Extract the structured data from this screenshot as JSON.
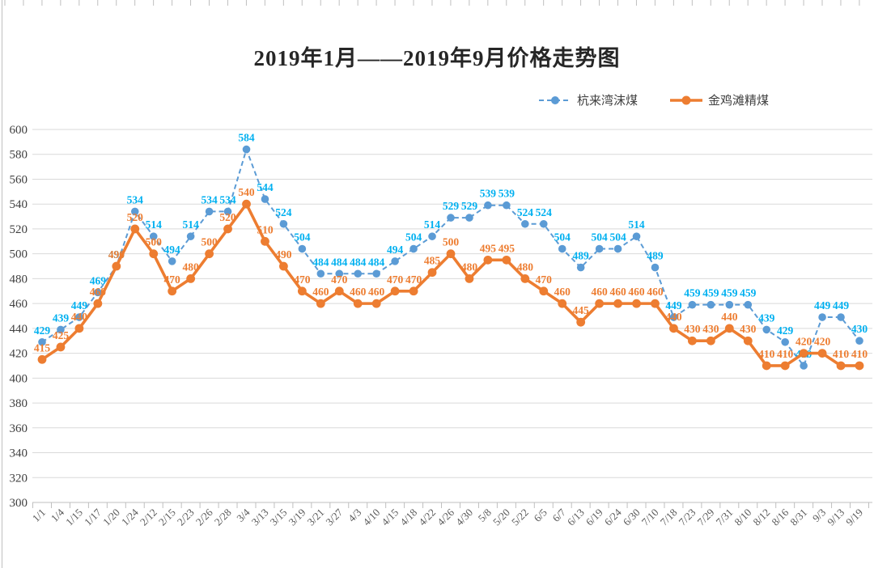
{
  "title": "2019年1月——2019年9月价格走势图",
  "legend": [
    {
      "label": "杭来湾沫煤"
    },
    {
      "label": "金鸡滩精煤"
    }
  ],
  "colors": {
    "series1_line": "#5B9BD5",
    "series1_label": "#00B0F0",
    "series2_line": "#ED7D31",
    "series2_label": "#ED7D31",
    "gridline": "#D9D9D9",
    "axis_line": "#BFBFBF",
    "axis_text": "#404040"
  },
  "chart_data": {
    "type": "line",
    "title": "2019年1月——2019年9月价格走势图",
    "xlabel": "",
    "ylabel": "",
    "grid": true,
    "legend_position": "top-right",
    "ylim": [
      300,
      600
    ],
    "y_ticks": [
      600,
      580,
      560,
      540,
      520,
      500,
      480,
      460,
      440,
      420,
      400,
      380,
      360,
      340,
      320,
      300
    ],
    "categories": [
      "1/1",
      "1/4",
      "1/15",
      "1/17",
      "1/20",
      "1/24",
      "2/12",
      "2/15",
      "2/23",
      "2/26",
      "2/28",
      "3/4",
      "3/13",
      "3/15",
      "3/19",
      "3/21",
      "3/27",
      "4/3",
      "4/10",
      "4/15",
      "4/18",
      "4/22",
      "4/26",
      "4/30",
      "5/8",
      "5/20",
      "5/22",
      "6/5",
      "6/7",
      "6/13",
      "6/19",
      "6/24",
      "6/30",
      "7/10",
      "7/18",
      "7/23",
      "7/29",
      "7/31",
      "8/10",
      "8/12",
      "8/16",
      "8/31",
      "9/3",
      "9/13",
      "9/19"
    ],
    "series": [
      {
        "name": "杭来湾沫煤",
        "style": "dashed",
        "color": "#5B9BD5",
        "label_color": "#00B0F0",
        "values": [
          429,
          439,
          449,
          469,
          490,
          534,
          514,
          494,
          514,
          534,
          534,
          584,
          544,
          524,
          504,
          484,
          484,
          484,
          484,
          494,
          504,
          514,
          529,
          529,
          539,
          539,
          524,
          524,
          504,
          489,
          504,
          504,
          514,
          489,
          449,
          459,
          459,
          459,
          459,
          439,
          429,
          410,
          449,
          449,
          430
        ]
      },
      {
        "name": "金鸡滩精煤",
        "style": "solid",
        "color": "#ED7D31",
        "label_color": "#ED7D31",
        "values": [
          415,
          425,
          440,
          460,
          490,
          520,
          500,
          470,
          480,
          500,
          520,
          540,
          510,
          490,
          470,
          460,
          470,
          460,
          460,
          470,
          470,
          485,
          500,
          480,
          495,
          495,
          480,
          470,
          460,
          445,
          460,
          460,
          460,
          460,
          440,
          430,
          430,
          440,
          430,
          410,
          410,
          420,
          420,
          410,
          410
        ]
      }
    ]
  }
}
